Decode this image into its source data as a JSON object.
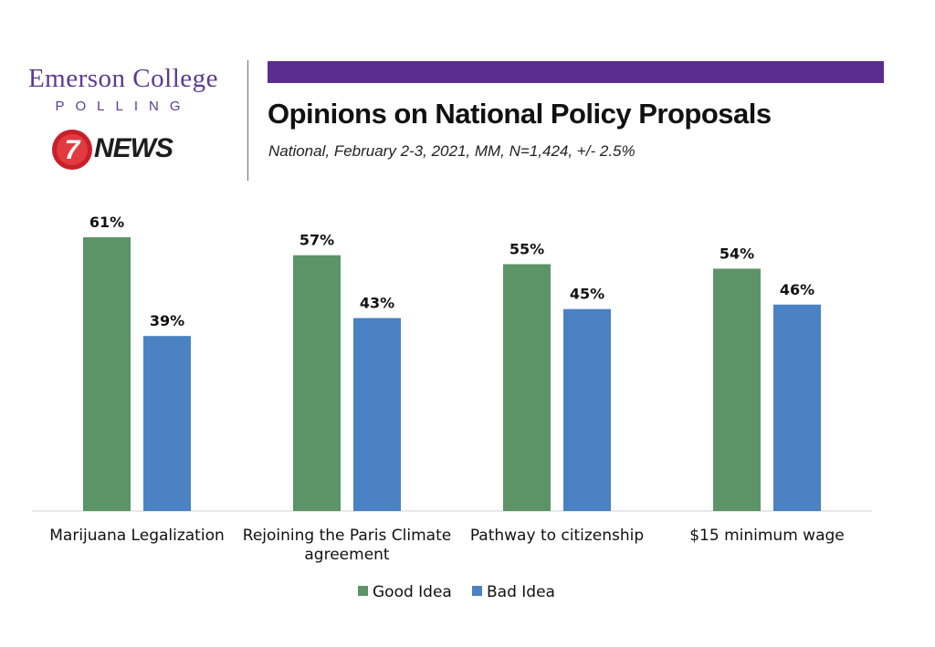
{
  "branding": {
    "emerson": "Emerson College",
    "polling": "POLLING",
    "news_number": "7",
    "news": "NEWS"
  },
  "header": {
    "title": "Opinions on National Policy Proposals",
    "subtitle": "National, February 2-3, 2021, MM, N=1,424, +/- 2.5%"
  },
  "colors": {
    "accent_bar": "#5c2d91",
    "good": "#5b9467",
    "bad": "#4a82c3",
    "news_red": "#c8202a"
  },
  "chart_data": {
    "type": "bar",
    "categories": [
      [
        "Marijuana Legalization"
      ],
      [
        "Rejoining the Paris Climate",
        "agreement"
      ],
      [
        "Pathway to citizenship"
      ],
      [
        "$15 minimum wage"
      ]
    ],
    "series": [
      {
        "name": "Good Idea",
        "values": [
          61,
          57,
          55,
          54
        ],
        "labels": [
          "61%",
          "57%",
          "55%",
          "54%"
        ]
      },
      {
        "name": "Bad Idea",
        "values": [
          39,
          43,
          45,
          46
        ],
        "labels": [
          "39%",
          "43%",
          "45%",
          "46%"
        ]
      }
    ],
    "title": "Opinions on National Policy Proposals",
    "xlabel": "",
    "ylabel": "",
    "ylim": [
      0,
      100
    ],
    "grid": false,
    "legend": "bottom"
  }
}
